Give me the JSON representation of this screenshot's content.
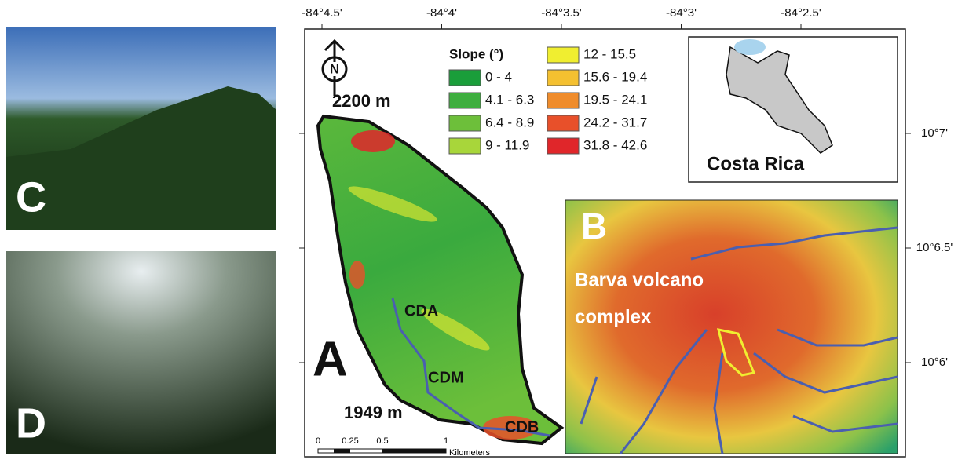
{
  "photos": [
    {
      "label": "C"
    },
    {
      "label": "D"
    }
  ],
  "map": {
    "x_ticks": [
      "-84°4.5'",
      "-84°4'",
      "-84°3.5'",
      "-84°3'",
      "-84°2.5'"
    ],
    "y_ticks": [
      "10°7'",
      "10°6.5'",
      "10°6'"
    ],
    "panel_label": "A",
    "north": "N",
    "elevation_top": "2200 m",
    "elevation_bottom": "1949 m",
    "sites": [
      "CDA",
      "CDM",
      "CDB"
    ],
    "legend": {
      "title": "Slope (°)",
      "classes": [
        {
          "label": "0 - 4",
          "color": "#1a9e3a"
        },
        {
          "label": "4.1 - 6.3",
          "color": "#3fae3f"
        },
        {
          "label": "6.4 - 8.9",
          "color": "#6dbf3a"
        },
        {
          "label": "9 - 11.9",
          "color": "#a8d63a"
        },
        {
          "label": "12 - 15.5",
          "color": "#f0ee30"
        },
        {
          "label": "15.6 - 19.4",
          "color": "#f4c030"
        },
        {
          "label": "19.5 - 24.1",
          "color": "#ef8c2c"
        },
        {
          "label": "24.2 - 31.7",
          "color": "#e8502a"
        },
        {
          "label": "31.8 - 42.6",
          "color": "#e0262a"
        }
      ]
    },
    "scale_bar": {
      "ticks": [
        "0",
        "0.25",
        "0.5",
        "1"
      ],
      "unit": "Kilometers"
    }
  },
  "inset": {
    "label": "Costa Rica"
  },
  "relief": {
    "panel_label": "B",
    "place": [
      "Barva volcano",
      "complex"
    ]
  }
}
